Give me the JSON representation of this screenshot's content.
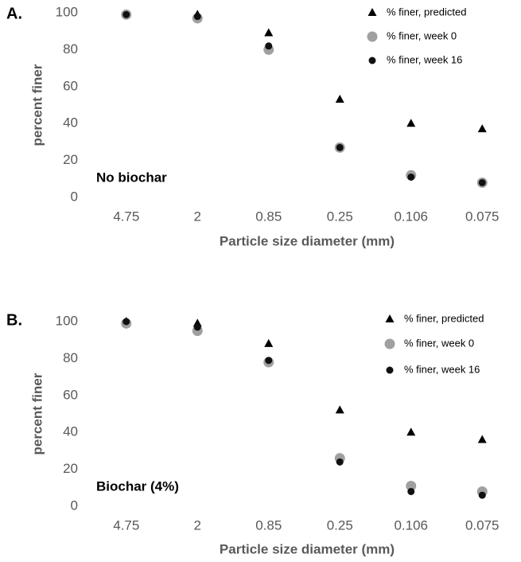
{
  "chart_data": [
    {
      "type": "scatter",
      "panel_label": "A.",
      "annotation": "No biochar",
      "x_label": "Particle size diameter (mm)",
      "y_label": "percent finer",
      "categories": [
        "4.75",
        "2",
        "0.85",
        "0.25",
        "0.106",
        "0.075"
      ],
      "ylim": [
        0,
        100
      ],
      "yticks": [
        0,
        20,
        40,
        60,
        80,
        100
      ],
      "series": [
        {
          "name": "% finer, predicted",
          "color": "#000000",
          "marker": "triangle",
          "values": [
            99,
            99,
            89,
            53,
            40,
            37
          ]
        },
        {
          "name": "% finer, week 0",
          "color": "#a0a0a0",
          "marker": "large-circle",
          "values": [
            99,
            97,
            80,
            27,
            12,
            8
          ]
        },
        {
          "name": "% finer, week 16",
          "color": "#111111",
          "marker": "small-circle",
          "values": [
            99,
            98,
            82,
            27,
            11,
            8
          ]
        }
      ]
    },
    {
      "type": "scatter",
      "panel_label": "B.",
      "annotation": "Biochar (4%)",
      "x_label": "Particle size diameter (mm)",
      "y_label": "percent finer",
      "categories": [
        "4.75",
        "2",
        "0.85",
        "0.25",
        "0.106",
        "0.075"
      ],
      "ylim": [
        0,
        100
      ],
      "yticks": [
        0,
        20,
        40,
        60,
        80,
        100
      ],
      "series": [
        {
          "name": "% finer, predicted",
          "color": "#000000",
          "marker": "triangle",
          "values": [
            100,
            99,
            88,
            52,
            40,
            36
          ]
        },
        {
          "name": "% finer, week 0",
          "color": "#a0a0a0",
          "marker": "large-circle",
          "values": [
            99,
            95,
            78,
            26,
            11,
            8
          ]
        },
        {
          "name": "% finer, week 16",
          "color": "#111111",
          "marker": "small-circle",
          "values": [
            100,
            97,
            79,
            24,
            8,
            6
          ]
        }
      ]
    }
  ]
}
